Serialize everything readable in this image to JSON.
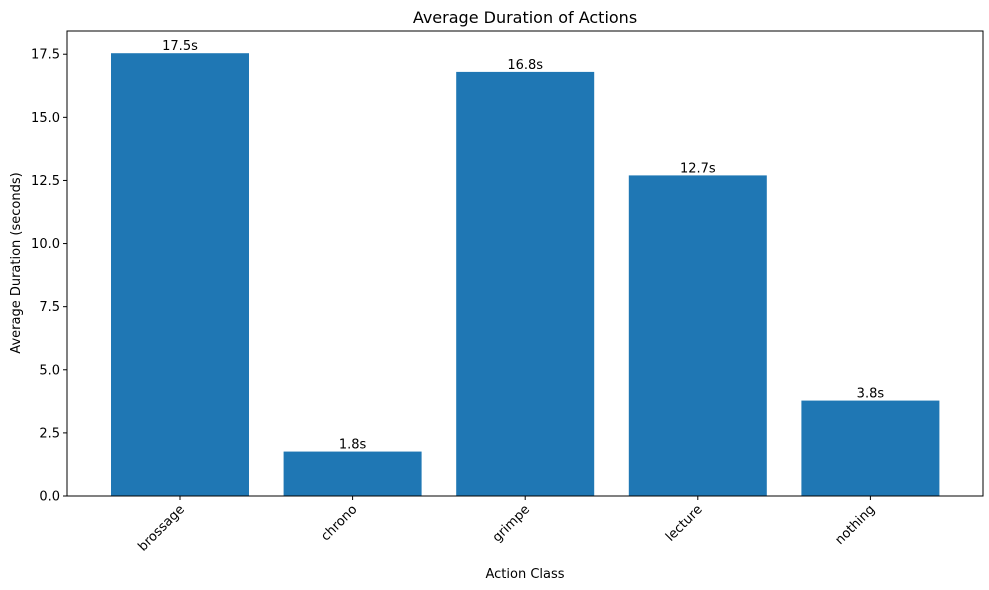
{
  "chart_data": {
    "type": "bar",
    "title": "Average Duration of Actions",
    "xlabel": "Action Class",
    "ylabel": "Average Duration (seconds)",
    "categories": [
      "brossage",
      "chrono",
      "grimpe",
      "lecture",
      "nothing"
    ],
    "values": [
      17.54,
      1.76,
      16.8,
      12.7,
      3.78
    ],
    "data_labels": [
      "17.5s",
      "1.8s",
      "16.8s",
      "12.7s",
      "3.8s"
    ],
    "yticks": [
      0.0,
      2.5,
      5.0,
      7.5,
      10.0,
      12.5,
      15.0,
      17.5
    ],
    "ytick_labels": [
      "0.0",
      "2.5",
      "5.0",
      "7.5",
      "10.0",
      "12.5",
      "15.0",
      "17.5"
    ],
    "ylim": [
      0,
      18.42
    ],
    "grid": false,
    "bar_color": "#1f77b4",
    "xtick_rotation_deg": 45
  }
}
